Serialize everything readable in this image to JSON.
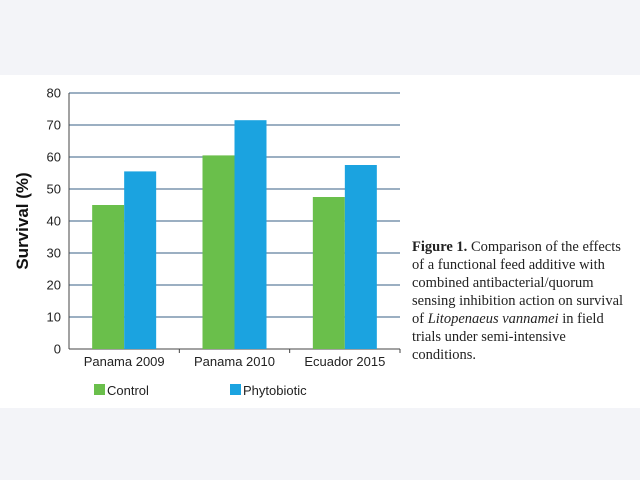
{
  "colors": {
    "control": "#6abf4b",
    "phytobiotic": "#1ba3e0",
    "grid": "#5f7f9d",
    "text": "#222222",
    "background": "#f3f4f8",
    "panel": "#ffffff"
  },
  "chart_data": {
    "type": "bar",
    "categories": [
      "Panama 2009",
      "Panama 2010",
      "Ecuador 2015"
    ],
    "series": [
      {
        "name": "Control",
        "values": [
          45,
          60.5,
          47.5
        ]
      },
      {
        "name": "Phytobiotic",
        "values": [
          55.5,
          71.5,
          57.5
        ]
      }
    ],
    "ylabel": "Survival (%)",
    "ylim": [
      0,
      80
    ],
    "yticks": [
      0,
      10,
      20,
      30,
      40,
      50,
      60,
      70,
      80
    ],
    "grid": true,
    "legend": "bottom"
  },
  "caption": {
    "label": "Figure 1.",
    "text_before": " Comparison of the effects of a functional feed additive with combined antibacterial/quorum sensing inhibition action on survival of ",
    "species": "Litopenaeus vannamei",
    "text_after": " in field trials under semi-intensive conditions."
  }
}
